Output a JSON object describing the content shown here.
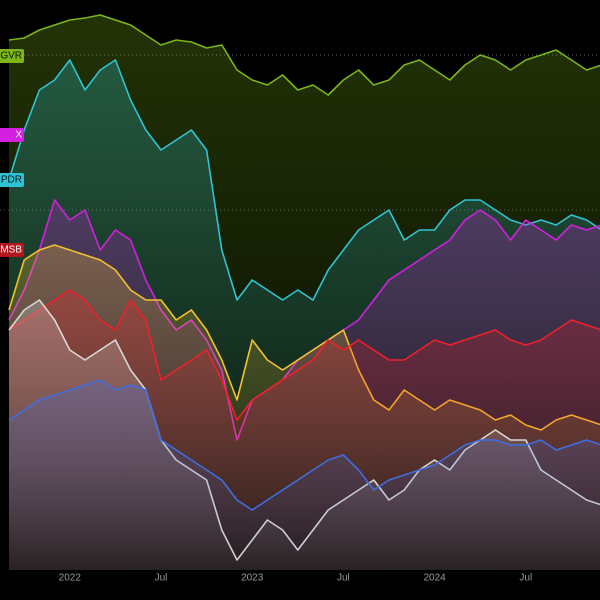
{
  "chart_data": {
    "type": "line",
    "categories": [
      null,
      null,
      null,
      null,
      "2022",
      null,
      null,
      null,
      null,
      null,
      "Jul",
      null,
      null,
      null,
      null,
      null,
      "2023",
      null,
      null,
      null,
      null,
      null,
      "Jul",
      null,
      null,
      null,
      null,
      null,
      "2024",
      null,
      null,
      null,
      null,
      null,
      "Jul",
      null,
      null,
      null,
      null,
      null
    ],
    "ylim": [
      0,
      570
    ],
    "series": [
      {
        "name": "+GVR",
        "color": "#7cb518",
        "values": [
          530,
          532,
          540,
          545,
          550,
          552,
          555,
          550,
          545,
          535,
          525,
          530,
          528,
          522,
          525,
          500,
          490,
          485,
          495,
          480,
          485,
          475,
          490,
          500,
          485,
          490,
          505,
          510,
          500,
          490,
          505,
          515,
          510,
          500,
          510,
          515,
          520,
          510,
          500,
          505
        ]
      },
      {
        "name": "PDR",
        "color": "#2ec4d6",
        "values": [
          390,
          440,
          480,
          490,
          510,
          480,
          500,
          510,
          470,
          440,
          420,
          430,
          440,
          420,
          320,
          270,
          290,
          280,
          270,
          280,
          270,
          300,
          320,
          340,
          350,
          360,
          330,
          340,
          340,
          360,
          370,
          370,
          360,
          350,
          345,
          350,
          345,
          355,
          350,
          340
        ]
      },
      {
        "name": "X",
        "color": "#d21fe0",
        "values": [
          250,
          280,
          320,
          370,
          350,
          360,
          320,
          340,
          330,
          290,
          260,
          240,
          250,
          230,
          200,
          130,
          170,
          180,
          190,
          210,
          220,
          230,
          240,
          250,
          270,
          290,
          300,
          310,
          320,
          330,
          350,
          360,
          350,
          330,
          350,
          340,
          330,
          345,
          340,
          345
        ]
      },
      {
        "color": "#f5c12e",
        "values": [
          260,
          310,
          320,
          325,
          320,
          315,
          310,
          300,
          280,
          270,
          270,
          250,
          260,
          240,
          210,
          170,
          230,
          210,
          200,
          210,
          220,
          230,
          240,
          200,
          170,
          160,
          180,
          170,
          160,
          170,
          165,
          160,
          150,
          155,
          145,
          140,
          150,
          155,
          150,
          145
        ]
      },
      {
        "name": "MSB",
        "color": "#f0202a",
        "values": [
          240,
          250,
          260,
          270,
          280,
          270,
          250,
          240,
          270,
          250,
          190,
          200,
          210,
          220,
          190,
          150,
          170,
          180,
          190,
          200,
          210,
          230,
          220,
          230,
          220,
          210,
          210,
          220,
          230,
          225,
          230,
          235,
          240,
          230,
          225,
          230,
          240,
          250,
          245,
          240
        ]
      },
      {
        "color": "#d8d8d8",
        "values": [
          240,
          260,
          270,
          250,
          220,
          210,
          220,
          230,
          200,
          180,
          130,
          110,
          100,
          90,
          40,
          10,
          30,
          50,
          40,
          20,
          40,
          60,
          70,
          80,
          90,
          70,
          80,
          100,
          110,
          100,
          120,
          130,
          140,
          130,
          130,
          100,
          90,
          80,
          70,
          65
        ]
      },
      {
        "color": "#3f6ee0",
        "values": [
          150,
          160,
          170,
          175,
          180,
          185,
          190,
          180,
          185,
          180,
          130,
          120,
          110,
          100,
          90,
          70,
          60,
          70,
          80,
          90,
          100,
          110,
          115,
          100,
          80,
          90,
          95,
          100,
          105,
          115,
          125,
          130,
          130,
          125,
          125,
          130,
          120,
          125,
          130,
          125
        ]
      }
    ]
  }
}
